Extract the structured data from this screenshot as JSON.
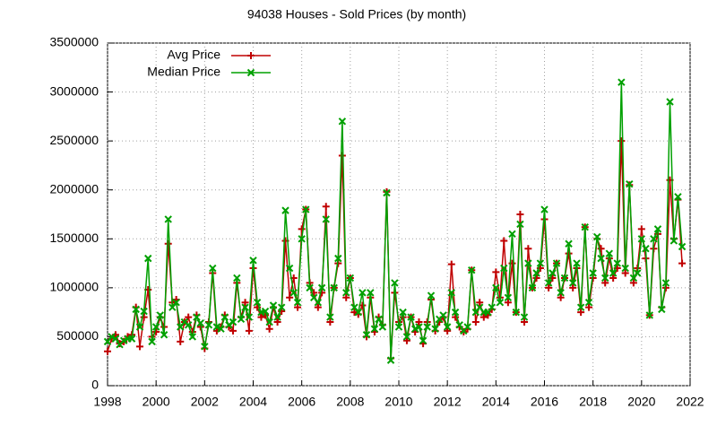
{
  "chart_data": {
    "type": "line",
    "title": "94038 Houses - Sold Prices (by month)",
    "x": [
      1998,
      1998.17,
      1998.33,
      1998.5,
      1998.67,
      1998.83,
      1999,
      1999.17,
      1999.33,
      1999.5,
      1999.67,
      1999.83,
      2000,
      2000.17,
      2000.33,
      2000.5,
      2000.67,
      2000.83,
      2001,
      2001.17,
      2001.33,
      2001.5,
      2001.67,
      2001.83,
      2002,
      2002.17,
      2002.33,
      2002.5,
      2002.67,
      2002.83,
      2003,
      2003.17,
      2003.33,
      2003.5,
      2003.67,
      2003.83,
      2004,
      2004.17,
      2004.33,
      2004.5,
      2004.67,
      2004.83,
      2005,
      2005.17,
      2005.33,
      2005.5,
      2005.67,
      2005.83,
      2006,
      2006.17,
      2006.33,
      2006.5,
      2006.67,
      2006.83,
      2007,
      2007.17,
      2007.33,
      2007.5,
      2007.67,
      2007.83,
      2008,
      2008.17,
      2008.33,
      2008.5,
      2008.67,
      2008.83,
      2009,
      2009.17,
      2009.33,
      2009.5,
      2009.67,
      2009.83,
      2010,
      2010.17,
      2010.33,
      2010.5,
      2010.67,
      2010.83,
      2011,
      2011.17,
      2011.33,
      2011.5,
      2011.67,
      2011.83,
      2012,
      2012.17,
      2012.33,
      2012.5,
      2012.67,
      2012.83,
      2013,
      2013.17,
      2013.33,
      2013.5,
      2013.67,
      2013.83,
      2014,
      2014.17,
      2014.33,
      2014.5,
      2014.67,
      2014.83,
      2015,
      2015.17,
      2015.33,
      2015.5,
      2015.67,
      2015.83,
      2016,
      2016.17,
      2016.33,
      2016.5,
      2016.67,
      2016.83,
      2017,
      2017.17,
      2017.33,
      2017.5,
      2017.67,
      2017.83,
      2018,
      2018.17,
      2018.33,
      2018.5,
      2018.67,
      2018.83,
      2019,
      2019.17,
      2019.33,
      2019.5,
      2019.67,
      2019.83,
      2020,
      2020.17,
      2020.33,
      2020.5,
      2020.67,
      2020.83,
      2021,
      2021.17,
      2021.33,
      2021.5,
      2021.67
    ],
    "series": [
      {
        "name": "Avg Price",
        "color": "#c00000",
        "marker": "plus",
        "values": [
          350000,
          480000,
          520000,
          430000,
          450000,
          500000,
          520000,
          800000,
          400000,
          700000,
          980000,
          500000,
          550000,
          700000,
          600000,
          1450000,
          850000,
          880000,
          450000,
          650000,
          700000,
          550000,
          720000,
          600000,
          380000,
          650000,
          1150000,
          560000,
          600000,
          720000,
          600000,
          560000,
          1050000,
          700000,
          850000,
          560000,
          1200000,
          800000,
          700000,
          720000,
          580000,
          800000,
          650000,
          760000,
          1480000,
          900000,
          1100000,
          800000,
          1600000,
          1800000,
          1050000,
          950000,
          800000,
          950000,
          1830000,
          650000,
          1000000,
          1250000,
          2350000,
          900000,
          1100000,
          750000,
          730000,
          820000,
          500000,
          900000,
          550000,
          700000,
          620000,
          1980000,
          280000,
          950000,
          650000,
          700000,
          460000,
          700000,
          550000,
          650000,
          430000,
          650000,
          880000,
          560000,
          650000,
          700000,
          560000,
          1240000,
          700000,
          600000,
          550000,
          580000,
          1180000,
          650000,
          850000,
          700000,
          720000,
          780000,
          1160000,
          900000,
          1480000,
          850000,
          1250000,
          750000,
          1750000,
          650000,
          1400000,
          1000000,
          1100000,
          1200000,
          1700000,
          1000000,
          1100000,
          1250000,
          900000,
          1100000,
          1350000,
          1000000,
          1200000,
          750000,
          1620000,
          800000,
          1100000,
          1500000,
          1400000,
          1050000,
          1300000,
          1100000,
          1200000,
          2500000,
          1150000,
          2050000,
          1050000,
          1200000,
          1600000,
          1300000,
          720000,
          1400000,
          1550000,
          800000,
          1000000,
          2100000,
          1500000,
          1900000,
          1250000
        ]
      },
      {
        "name": "Median Price",
        "color": "#00a000",
        "marker": "cross",
        "values": [
          450000,
          500000,
          480000,
          420000,
          460000,
          480000,
          480000,
          780000,
          600000,
          760000,
          1300000,
          450000,
          600000,
          720000,
          520000,
          1700000,
          800000,
          850000,
          600000,
          650000,
          620000,
          500000,
          700000,
          640000,
          400000,
          620000,
          1200000,
          600000,
          580000,
          700000,
          620000,
          650000,
          1100000,
          680000,
          800000,
          700000,
          1280000,
          850000,
          750000,
          760000,
          650000,
          820000,
          700000,
          800000,
          1790000,
          1200000,
          950000,
          850000,
          1500000,
          1800000,
          1000000,
          900000,
          850000,
          1000000,
          1700000,
          700000,
          1000000,
          1300000,
          2700000,
          950000,
          1100000,
          800000,
          750000,
          950000,
          520000,
          950000,
          580000,
          680000,
          600000,
          1970000,
          260000,
          1050000,
          600000,
          750000,
          500000,
          700000,
          580000,
          600000,
          460000,
          600000,
          920000,
          580000,
          680000,
          720000,
          600000,
          950000,
          750000,
          620000,
          560000,
          600000,
          1180000,
          750000,
          800000,
          750000,
          750000,
          800000,
          1000000,
          850000,
          1200000,
          900000,
          1550000,
          750000,
          1650000,
          700000,
          1250000,
          1000000,
          1150000,
          1250000,
          1800000,
          1050000,
          1150000,
          1250000,
          950000,
          1100000,
          1450000,
          1050000,
          1250000,
          800000,
          1620000,
          850000,
          1150000,
          1520000,
          1300000,
          1100000,
          1350000,
          1150000,
          1250000,
          3100000,
          1200000,
          2060000,
          1100000,
          1150000,
          1500000,
          1400000,
          720000,
          1500000,
          1600000,
          780000,
          1050000,
          2900000,
          1480000,
          1930000,
          1420000
        ]
      }
    ],
    "xlim": [
      1998,
      2022
    ],
    "xticks": [
      1998,
      2000,
      2002,
      2004,
      2006,
      2008,
      2010,
      2012,
      2014,
      2016,
      2018,
      2020,
      2022
    ],
    "ylim": [
      0,
      3500000
    ],
    "yticks": [
      0,
      500000,
      1000000,
      1500000,
      2000000,
      2500000,
      3000000,
      3500000
    ],
    "grid": true,
    "legend": "top-left"
  }
}
